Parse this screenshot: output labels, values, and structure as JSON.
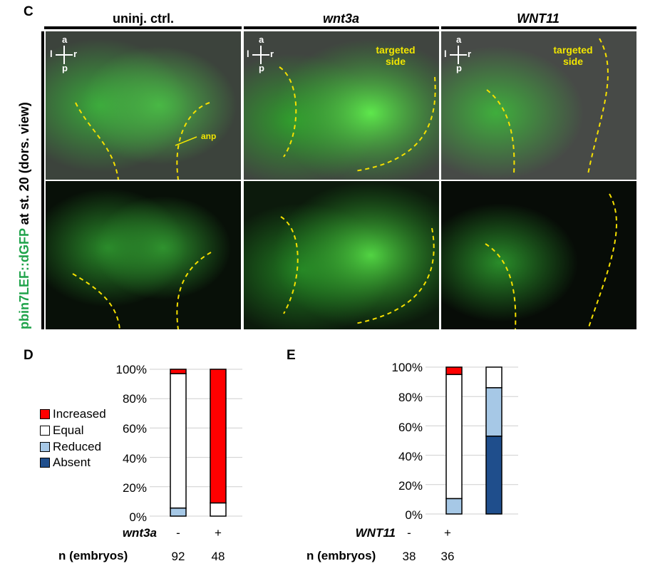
{
  "panel_c": {
    "letter": "C",
    "columns": [
      {
        "label": "uninj. ctrl.",
        "italic": false
      },
      {
        "label": "wnt3a",
        "italic": true
      },
      {
        "label": "WNT11",
        "italic": true
      }
    ],
    "ylabel_green": "pbin7LEF::dGFP",
    "ylabel_black": " at st. 20 (dors. view)",
    "axis_a": "a",
    "axis_l": "l",
    "axis_r": "r",
    "axis_p": "p",
    "anp_label": "anp",
    "targeted_line1": "targeted",
    "targeted_line2": "side",
    "outline_color": "#f5e000",
    "label_color": "#f2e600"
  },
  "chart_data": [
    {
      "panel": "D",
      "type": "bar",
      "stacked": true,
      "percent": true,
      "categories": [
        "-",
        "+"
      ],
      "ylim": [
        0,
        100
      ],
      "yticks": [
        "0%",
        "20%",
        "40%",
        "60%",
        "80%",
        "100%"
      ],
      "series": [
        {
          "name": "Absent",
          "color": "#1f4e8c",
          "values": [
            0,
            0
          ]
        },
        {
          "name": "Reduced",
          "color": "#a6c8e6",
          "values": [
            5.5,
            0
          ]
        },
        {
          "name": "Equal",
          "color": "#ffffff",
          "values": [
            91.5,
            9
          ]
        },
        {
          "name": "Increased",
          "color": "#ff0000",
          "values": [
            3,
            91
          ]
        }
      ],
      "row_label": "wnt3a",
      "n_label": "n (embryos)",
      "n": [
        "92",
        "48"
      ]
    },
    {
      "panel": "E",
      "type": "bar",
      "stacked": true,
      "percent": true,
      "categories": [
        "-",
        "+"
      ],
      "ylim": [
        0,
        100
      ],
      "yticks": [
        "0%",
        "20%",
        "40%",
        "60%",
        "80%",
        "100%"
      ],
      "series": [
        {
          "name": "Absent",
          "color": "#1f4e8c",
          "values": [
            0,
            53
          ]
        },
        {
          "name": "Reduced",
          "color": "#a6c8e6",
          "values": [
            10.5,
            33
          ]
        },
        {
          "name": "Equal",
          "color": "#ffffff",
          "values": [
            84.5,
            14
          ]
        },
        {
          "name": "Increased",
          "color": "#ff0000",
          "values": [
            5,
            0
          ]
        }
      ],
      "row_label": "WNT11",
      "n_label": "n (embryos)",
      "n": [
        "38",
        "36"
      ]
    }
  ],
  "legend": [
    {
      "name": "Increased",
      "color": "#ff0000"
    },
    {
      "name": "Equal",
      "color": "#ffffff"
    },
    {
      "name": "Reduced",
      "color": "#a6c8e6"
    },
    {
      "name": "Absent",
      "color": "#1f4e8c"
    }
  ]
}
